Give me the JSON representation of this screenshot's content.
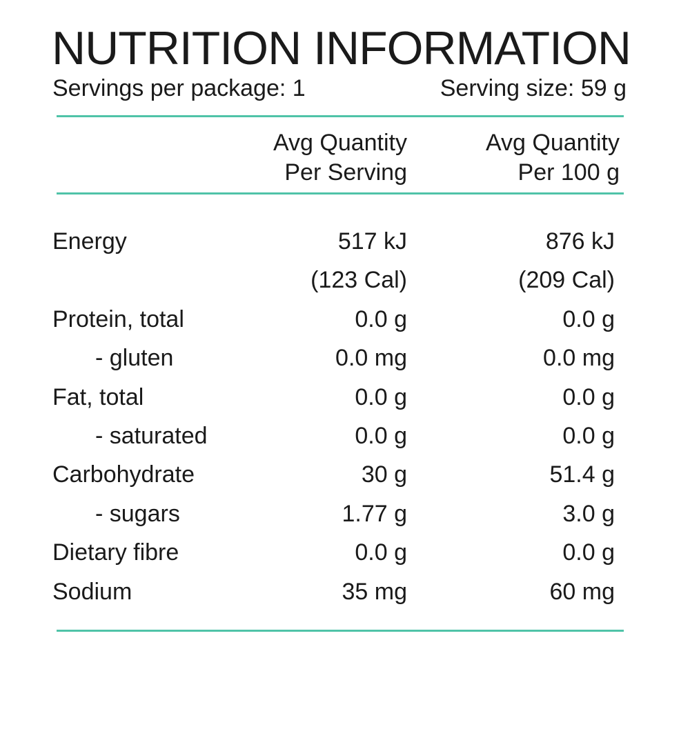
{
  "title": "NUTRITION INFORMATION",
  "servings_per_package": "Servings per package: 1",
  "serving_size": "Serving size: 59 g",
  "accent_color": "#4fc3a8",
  "columns": {
    "per_serving": {
      "line1": "Avg Quantity",
      "line2": "Per Serving"
    },
    "per_100g": {
      "line1": "Avg Quantity",
      "line2": "Per 100 g"
    }
  },
  "rows": [
    {
      "label": "Energy",
      "per_serving": "517 kJ",
      "per_100g": "876 kJ",
      "indent": false
    },
    {
      "label": "",
      "per_serving": "(123 Cal)",
      "per_100g": "(209 Cal)",
      "indent": false
    },
    {
      "label": "Protein, total",
      "per_serving": "0.0 g",
      "per_100g": "0.0 g",
      "indent": false
    },
    {
      "label": "- gluten",
      "per_serving": "0.0 mg",
      "per_100g": "0.0 mg",
      "indent": true
    },
    {
      "label": "Fat, total",
      "per_serving": "0.0 g",
      "per_100g": "0.0 g",
      "indent": false
    },
    {
      "label": "- saturated",
      "per_serving": "0.0 g",
      "per_100g": "0.0 g",
      "indent": true
    },
    {
      "label": "Carbohydrate",
      "per_serving": "30 g",
      "per_100g": "51.4 g",
      "indent": false
    },
    {
      "label": "- sugars",
      "per_serving": "1.77 g",
      "per_100g": "3.0 g",
      "indent": true
    },
    {
      "label": "Dietary fibre",
      "per_serving": "0.0 g",
      "per_100g": "0.0 g",
      "indent": false
    },
    {
      "label": "Sodium",
      "per_serving": "35 mg",
      "per_100g": "60 mg",
      "indent": false
    }
  ]
}
